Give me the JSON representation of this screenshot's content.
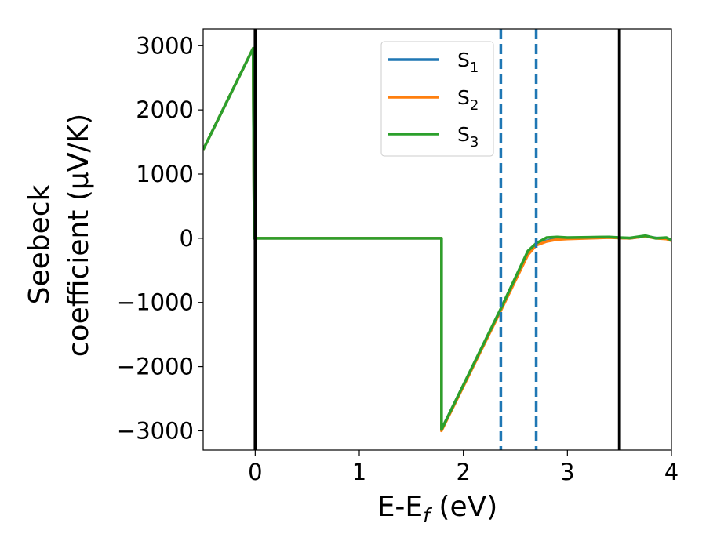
{
  "chart_data": {
    "type": "line",
    "title": "",
    "xlabel": "E-E",
    "xlabel_subscript": "f",
    "xlabel_suffix": " (eV)",
    "ylabel_line1": "Seebeck",
    "ylabel_line2": "coefficient  (μV/K)",
    "xlim": [
      -0.5,
      4.0
    ],
    "ylim": [
      -3300,
      3260
    ],
    "xticks": [
      0,
      1,
      2,
      3,
      4
    ],
    "yticks": [
      -3000,
      -2000,
      -1000,
      0,
      1000,
      2000,
      3000
    ],
    "grid": false,
    "legend_position": "upper center",
    "series": [
      {
        "name": "S",
        "subscript": "1",
        "color": "#1f77b4",
        "points": [
          [
            -0.5,
            1380
          ],
          [
            -0.02,
            2960
          ],
          [
            -0.01,
            0
          ],
          [
            1.79,
            0
          ],
          [
            1.79,
            -2980
          ],
          [
            2.35,
            -1150
          ],
          [
            2.62,
            -250
          ],
          [
            2.7,
            -100
          ],
          [
            2.8,
            -40
          ],
          [
            2.9,
            -10
          ],
          [
            3.0,
            0
          ],
          [
            3.2,
            5
          ],
          [
            3.4,
            15
          ],
          [
            3.5,
            5
          ],
          [
            3.6,
            0
          ],
          [
            3.75,
            30
          ],
          [
            3.85,
            5
          ],
          [
            3.95,
            0
          ],
          [
            4.0,
            -30
          ]
        ]
      },
      {
        "name": "S",
        "subscript": "2",
        "color": "#ff7f0e",
        "points": [
          [
            -0.5,
            1380
          ],
          [
            -0.02,
            2960
          ],
          [
            -0.01,
            0
          ],
          [
            1.79,
            0
          ],
          [
            1.79,
            -3000
          ],
          [
            2.35,
            -1160
          ],
          [
            2.62,
            -260
          ],
          [
            2.7,
            -110
          ],
          [
            2.8,
            -50
          ],
          [
            2.9,
            -20
          ],
          [
            3.0,
            -10
          ],
          [
            3.2,
            0
          ],
          [
            3.4,
            10
          ],
          [
            3.5,
            5
          ],
          [
            3.6,
            0
          ],
          [
            3.75,
            30
          ],
          [
            3.85,
            0
          ],
          [
            3.95,
            -10
          ],
          [
            4.0,
            -40
          ]
        ]
      },
      {
        "name": "S",
        "subscript": "3",
        "color": "#2ca02c",
        "points": [
          [
            -0.5,
            1380
          ],
          [
            -0.02,
            2960
          ],
          [
            -0.01,
            0
          ],
          [
            1.79,
            0
          ],
          [
            1.79,
            -2980
          ],
          [
            2.35,
            -1130
          ],
          [
            2.62,
            -200
          ],
          [
            2.7,
            -80
          ],
          [
            2.8,
            10
          ],
          [
            2.9,
            20
          ],
          [
            3.0,
            10
          ],
          [
            3.2,
            15
          ],
          [
            3.4,
            20
          ],
          [
            3.5,
            10
          ],
          [
            3.6,
            5
          ],
          [
            3.75,
            40
          ],
          [
            3.85,
            0
          ],
          [
            3.95,
            10
          ],
          [
            4.0,
            -30
          ]
        ]
      }
    ],
    "vertical_lines": [
      {
        "x": 0.0,
        "color": "#000000",
        "style": "solid"
      },
      {
        "x": 3.5,
        "color": "#000000",
        "style": "solid"
      },
      {
        "x": 2.36,
        "color": "#1f77b4",
        "style": "dashed"
      },
      {
        "x": 2.7,
        "color": "#1f77b4",
        "style": "dashed"
      }
    ]
  }
}
